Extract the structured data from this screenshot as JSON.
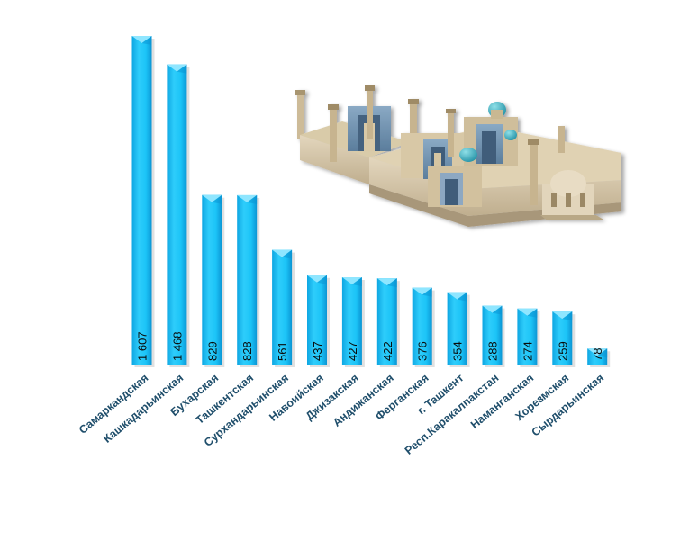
{
  "chart_data": {
    "type": "bar",
    "categories": [
      "Самаркандская",
      "Кашкадарьинская",
      "Бухарская",
      "Ташкентская",
      "Сурхандарьинская",
      "Навоийская",
      "Джизакская",
      "Андижанская",
      "Ферганская",
      "г. Ташкент",
      "Респ.Каракалпакстан",
      "Наманганская",
      "Хорезмская",
      "Сырдарьинская"
    ],
    "values": [
      1607,
      1468,
      829,
      828,
      561,
      437,
      427,
      422,
      376,
      354,
      288,
      274,
      259,
      78
    ],
    "value_labels": [
      "1 607",
      "1 468",
      "829",
      "828",
      "561",
      "437",
      "427",
      "422",
      "376",
      "354",
      "288",
      "274",
      "259",
      "78"
    ],
    "title": "",
    "xlabel": "",
    "ylabel": "",
    "ylim": [
      0,
      1650
    ],
    "grid": false,
    "legend": "none",
    "colors": {
      "bar_fill": "#1cc4f7",
      "bar_light": "#8fe6ff",
      "bar_dark": "#0b95d4",
      "tick_label": "#1f4e6b",
      "value_label": "#0a0a0a"
    }
  },
  "decoration": {
    "illustration": "registan-architecture-icon"
  }
}
